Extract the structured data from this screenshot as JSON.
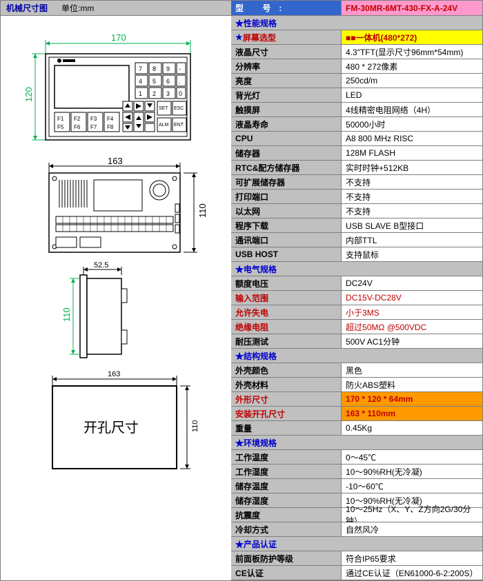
{
  "leftHeader": {
    "title": "机械尺寸图",
    "unit": "单位:mm"
  },
  "dimensions": {
    "front_w": "170",
    "front_h": "120",
    "back_w": "163",
    "back_h": "110",
    "side_w": "52.5",
    "side_h": "110",
    "cutout_w": "163",
    "cutout_h": "110",
    "cutout_label": "开孔尺寸"
  },
  "modelHeader": {
    "label": "型   号:",
    "value": "FM-30MR-6MT-430-FX-A-24V"
  },
  "sections": [
    {
      "type": "section",
      "label": "★性能规格"
    },
    {
      "type": "row-hl-yellow",
      "label": "★屏幕选型",
      "value": "■■一体机(480*272)"
    },
    {
      "type": "row",
      "label": "液晶尺寸",
      "value": "4.3″TFT(显示尺寸96mm*54mm)"
    },
    {
      "type": "row",
      "label": "分辨率",
      "value": "480 * 272像素"
    },
    {
      "type": "row",
      "label": "亮度",
      "value": "250cd/m"
    },
    {
      "type": "row",
      "label": "背光灯",
      "value": "LED"
    },
    {
      "type": "row",
      "label": "触摸屏",
      "value": "4线精密电阻网络（4H）"
    },
    {
      "type": "row",
      "label": "液晶寿命",
      "value": "50000小时"
    },
    {
      "type": "row",
      "label": "CPU",
      "value": "A8 800 MHz RISC"
    },
    {
      "type": "row",
      "label": "储存器",
      "value": "128M FLASH"
    },
    {
      "type": "row",
      "label": "RTC&配方储存器",
      "value": "实时时钟+512KB"
    },
    {
      "type": "row",
      "label": "可扩展储存器",
      "value": "不支持"
    },
    {
      "type": "row",
      "label": "打印端口",
      "value": "不支持"
    },
    {
      "type": "row",
      "label": "以太网",
      "value": "不支持"
    },
    {
      "type": "row",
      "label": "程序下载",
      "value": "USB SLAVE B型接口"
    },
    {
      "type": "row",
      "label": "通讯端口",
      "value": "内部TTL"
    },
    {
      "type": "row",
      "label": "USB HOST",
      "value": "支持鼠标"
    },
    {
      "type": "section",
      "label": "★电气规格"
    },
    {
      "type": "row",
      "label": "额度电压",
      "value": "DC24V"
    },
    {
      "type": "row-red",
      "label": "输入范围",
      "value": "DC15V-DC28V"
    },
    {
      "type": "row-red",
      "label": "允许失电",
      "value": "小于3MS"
    },
    {
      "type": "row-red",
      "label": "绝缘电阻",
      "value": "超过50MΩ @500VDC"
    },
    {
      "type": "row",
      "label": "耐压测试",
      "value": "500V AC1分钟"
    },
    {
      "type": "section",
      "label": "★结构规格"
    },
    {
      "type": "row",
      "label": "外壳颜色",
      "value": "黑色"
    },
    {
      "type": "row",
      "label": "外壳材料",
      "value": "防火ABS塑料"
    },
    {
      "type": "row-hl-orange",
      "label": "外形尺寸",
      "value": "170 * 120 * 64mm"
    },
    {
      "type": "row-hl-orange",
      "label": "安装开孔尺寸",
      "value": "163 * 110mm"
    },
    {
      "type": "row",
      "label": "重量",
      "value": "0.45Kg"
    },
    {
      "type": "section",
      "label": "★环境规格"
    },
    {
      "type": "row",
      "label": "工作温度",
      "value": "0～45℃"
    },
    {
      "type": "row",
      "label": "工作湿度",
      "value": "10～90%RH(无冷凝)"
    },
    {
      "type": "row",
      "label": "储存温度",
      "value": "-10～60℃"
    },
    {
      "type": "row",
      "label": "储存湿度",
      "value": "10～90%RH(无冷凝)"
    },
    {
      "type": "row",
      "label": "抗震度",
      "value": "10～25Hz（X、Y、Z方向2G/30分钟）"
    },
    {
      "type": "row",
      "label": "冷却方式",
      "value": "自然风冷"
    },
    {
      "type": "section",
      "label": "★产品认证"
    },
    {
      "type": "row",
      "label": "前面板防护等级",
      "value": "符合IP65要求"
    },
    {
      "type": "row",
      "label": "CE认证",
      "value": "通过CE认证（EN61000-6-2:200S）"
    }
  ],
  "colors": {
    "header_blue": "#3366cc",
    "header_pink": "#ff99cc",
    "section_gray": "#c0c0c0",
    "star_blue": "#0000cd",
    "dim_green": "#00b050",
    "red_text": "#c00000",
    "yellow_hl": "#ffff00",
    "orange_hl": "#ff9900",
    "border": "#7f7f7f"
  }
}
